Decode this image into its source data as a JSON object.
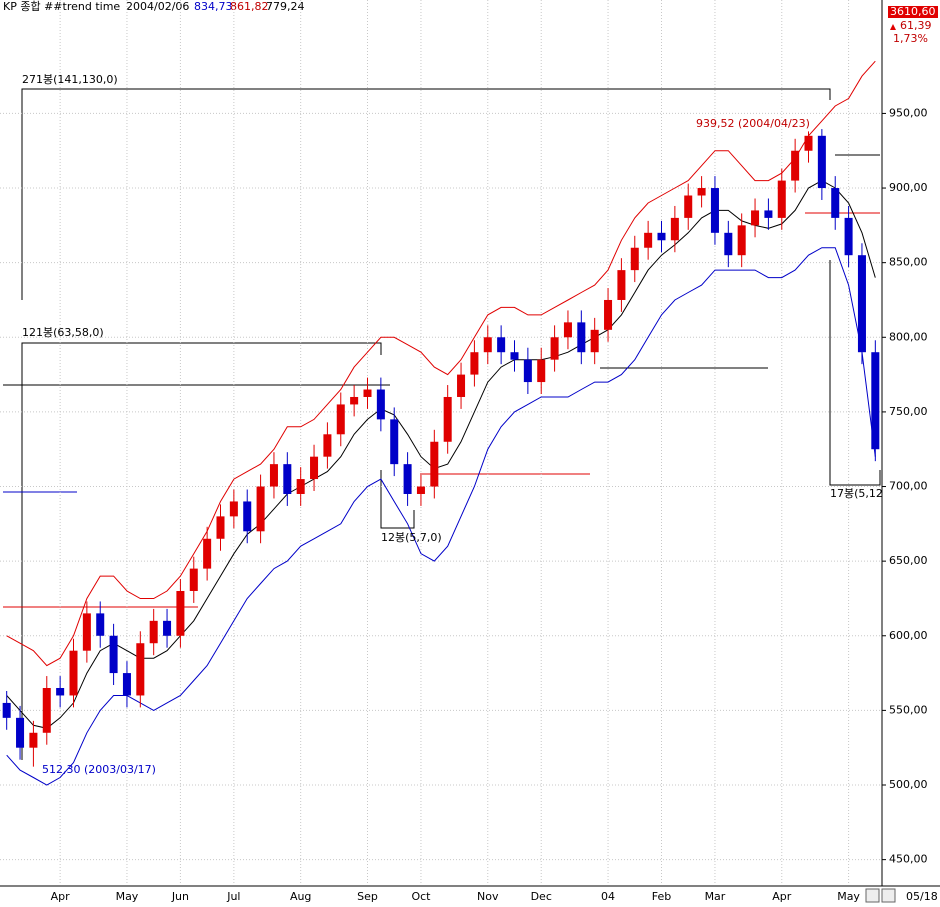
{
  "chart_data": {
    "type": "candlestick",
    "title": "KP 종합 ##trend time",
    "header": {
      "date": "2004/02/06",
      "open": "834,73",
      "high": "861,82",
      "low": "779,24"
    },
    "quote": {
      "last": "3610,60",
      "change": "61,39",
      "percent": "1,73%"
    },
    "last_date": "05/18",
    "up_color": "#e00000",
    "down_color": "#0000c8",
    "categories": [
      null,
      null,
      null,
      null,
      "Apr",
      null,
      null,
      null,
      null,
      "May",
      null,
      null,
      null,
      "Jun",
      null,
      null,
      null,
      "Jul",
      null,
      null,
      null,
      null,
      "Aug",
      null,
      null,
      null,
      null,
      "Sep",
      null,
      null,
      null,
      "Oct",
      null,
      null,
      null,
      null,
      "Nov",
      null,
      null,
      null,
      "Dec",
      null,
      null,
      null,
      null,
      "04",
      null,
      null,
      null,
      "Feb",
      null,
      null,
      null,
      "Mar",
      null,
      null,
      null,
      null,
      "Apr",
      null,
      null,
      null,
      null,
      "May",
      null,
      null
    ],
    "open": [
      555,
      545,
      525,
      535,
      565,
      560,
      590,
      615,
      600,
      575,
      560,
      595,
      610,
      600,
      630,
      645,
      665,
      680,
      690,
      670,
      700,
      715,
      695,
      705,
      720,
      735,
      755,
      760,
      765,
      745,
      715,
      695,
      700,
      730,
      760,
      775,
      790,
      800,
      790,
      785,
      770,
      785,
      800,
      810,
      790,
      805,
      825,
      845,
      860,
      870,
      865,
      880,
      895,
      900,
      870,
      855,
      875,
      885,
      880,
      905,
      925,
      935,
      900,
      880,
      855,
      790
    ],
    "high": [
      563,
      553,
      543,
      573,
      573,
      598,
      623,
      623,
      608,
      583,
      603,
      618,
      618,
      638,
      653,
      673,
      688,
      698,
      698,
      708,
      723,
      723,
      713,
      728,
      743,
      763,
      768,
      773,
      773,
      753,
      723,
      708,
      738,
      768,
      783,
      798,
      808,
      808,
      798,
      793,
      793,
      808,
      818,
      818,
      813,
      833,
      853,
      868,
      878,
      878,
      888,
      903,
      908,
      908,
      878,
      883,
      893,
      893,
      913,
      933,
      938,
      939.52,
      908,
      888,
      863,
      798
    ],
    "low": [
      537,
      517,
      512.3,
      527,
      552,
      552,
      582,
      592,
      567,
      552,
      552,
      587,
      592,
      592,
      622,
      637,
      657,
      672,
      662,
      662,
      692,
      687,
      687,
      697,
      712,
      727,
      747,
      752,
      737,
      707,
      687,
      687,
      692,
      722,
      752,
      767,
      782,
      782,
      777,
      762,
      762,
      777,
      792,
      782,
      782,
      797,
      817,
      837,
      852,
      857,
      857,
      872,
      887,
      862,
      847,
      847,
      867,
      872,
      872,
      897,
      917,
      892,
      872,
      847,
      782,
      717
    ],
    "close": [
      545,
      525,
      535,
      565,
      560,
      590,
      615,
      600,
      575,
      560,
      595,
      610,
      600,
      630,
      645,
      665,
      680,
      690,
      670,
      700,
      715,
      695,
      705,
      720,
      735,
      755,
      760,
      765,
      745,
      715,
      695,
      700,
      730,
      760,
      775,
      790,
      800,
      790,
      785,
      770,
      785,
      800,
      810,
      790,
      805,
      825,
      845,
      860,
      870,
      865,
      880,
      895,
      900,
      870,
      855,
      875,
      885,
      880,
      905,
      925,
      935,
      900,
      880,
      855,
      790,
      725
    ],
    "bands": [
      {
        "color": "#e00000",
        "values": [
          600,
          595,
          590,
          580,
          585,
          600,
          625,
          640,
          640,
          630,
          625,
          625,
          630,
          640,
          655,
          670,
          690,
          705,
          710,
          715,
          725,
          740,
          740,
          745,
          755,
          765,
          780,
          790,
          800,
          800,
          795,
          790,
          780,
          775,
          785,
          800,
          815,
          820,
          820,
          815,
          815,
          820,
          825,
          830,
          835,
          845,
          865,
          880,
          890,
          895,
          900,
          905,
          915,
          925,
          925,
          915,
          905,
          905,
          910,
          920,
          935,
          945,
          955,
          960,
          975,
          985
        ]
      },
      {
        "color": "#000000",
        "values": [
          560,
          550,
          540,
          538,
          545,
          555,
          575,
          590,
          595,
          590,
          585,
          585,
          590,
          600,
          610,
          625,
          640,
          655,
          668,
          675,
          685,
          695,
          700,
          705,
          710,
          720,
          735,
          745,
          752,
          748,
          735,
          720,
          712,
          715,
          730,
          750,
          770,
          780,
          785,
          785,
          785,
          787,
          790,
          795,
          800,
          805,
          815,
          830,
          845,
          855,
          862,
          870,
          880,
          885,
          885,
          878,
          875,
          873,
          876,
          885,
          900,
          905,
          900,
          890,
          870,
          840
        ]
      },
      {
        "color": "#0000c8",
        "values": [
          520,
          510,
          505,
          500,
          505,
          515,
          535,
          550,
          560,
          560,
          555,
          550,
          555,
          560,
          570,
          580,
          595,
          610,
          625,
          635,
          645,
          650,
          660,
          665,
          670,
          675,
          690,
          700,
          705,
          690,
          675,
          655,
          650,
          660,
          680,
          700,
          725,
          740,
          750,
          755,
          760,
          760,
          760,
          765,
          770,
          770,
          775,
          785,
          800,
          815,
          825,
          830,
          835,
          845,
          845,
          845,
          845,
          840,
          840,
          845,
          855,
          860,
          860,
          835,
          790,
          720
        ]
      }
    ],
    "ylim": [
      433,
      1026
    ],
    "yticks": [
      {
        "value": 450,
        "label": "450,00"
      },
      {
        "value": 500,
        "label": "500,00"
      },
      {
        "value": 550,
        "label": "550,00"
      },
      {
        "value": 600,
        "label": "600,00"
      },
      {
        "value": 650,
        "label": "650,00"
      },
      {
        "value": 700,
        "label": "700,00"
      },
      {
        "value": 750,
        "label": "750,00"
      },
      {
        "value": 800,
        "label": "800,00"
      },
      {
        "value": 850,
        "label": "850,00"
      },
      {
        "value": 900,
        "label": "900,00"
      },
      {
        "value": 950,
        "label": "950,00"
      }
    ],
    "grid": true,
    "annotations": [
      {
        "text": "271봉(141,130,0)",
        "color": "#000000"
      },
      {
        "text": "121봉(63,58,0)",
        "color": "#000000"
      },
      {
        "text": "12봉(5,7,0)",
        "color": "#000000"
      },
      {
        "text": "17봉(5,12",
        "color": "#000000"
      },
      {
        "text": "939,52 (2004/04/23)",
        "color": "#c00000"
      },
      {
        "text": "512,30 (2003/03/17)",
        "color": "#0000c8"
      }
    ]
  }
}
